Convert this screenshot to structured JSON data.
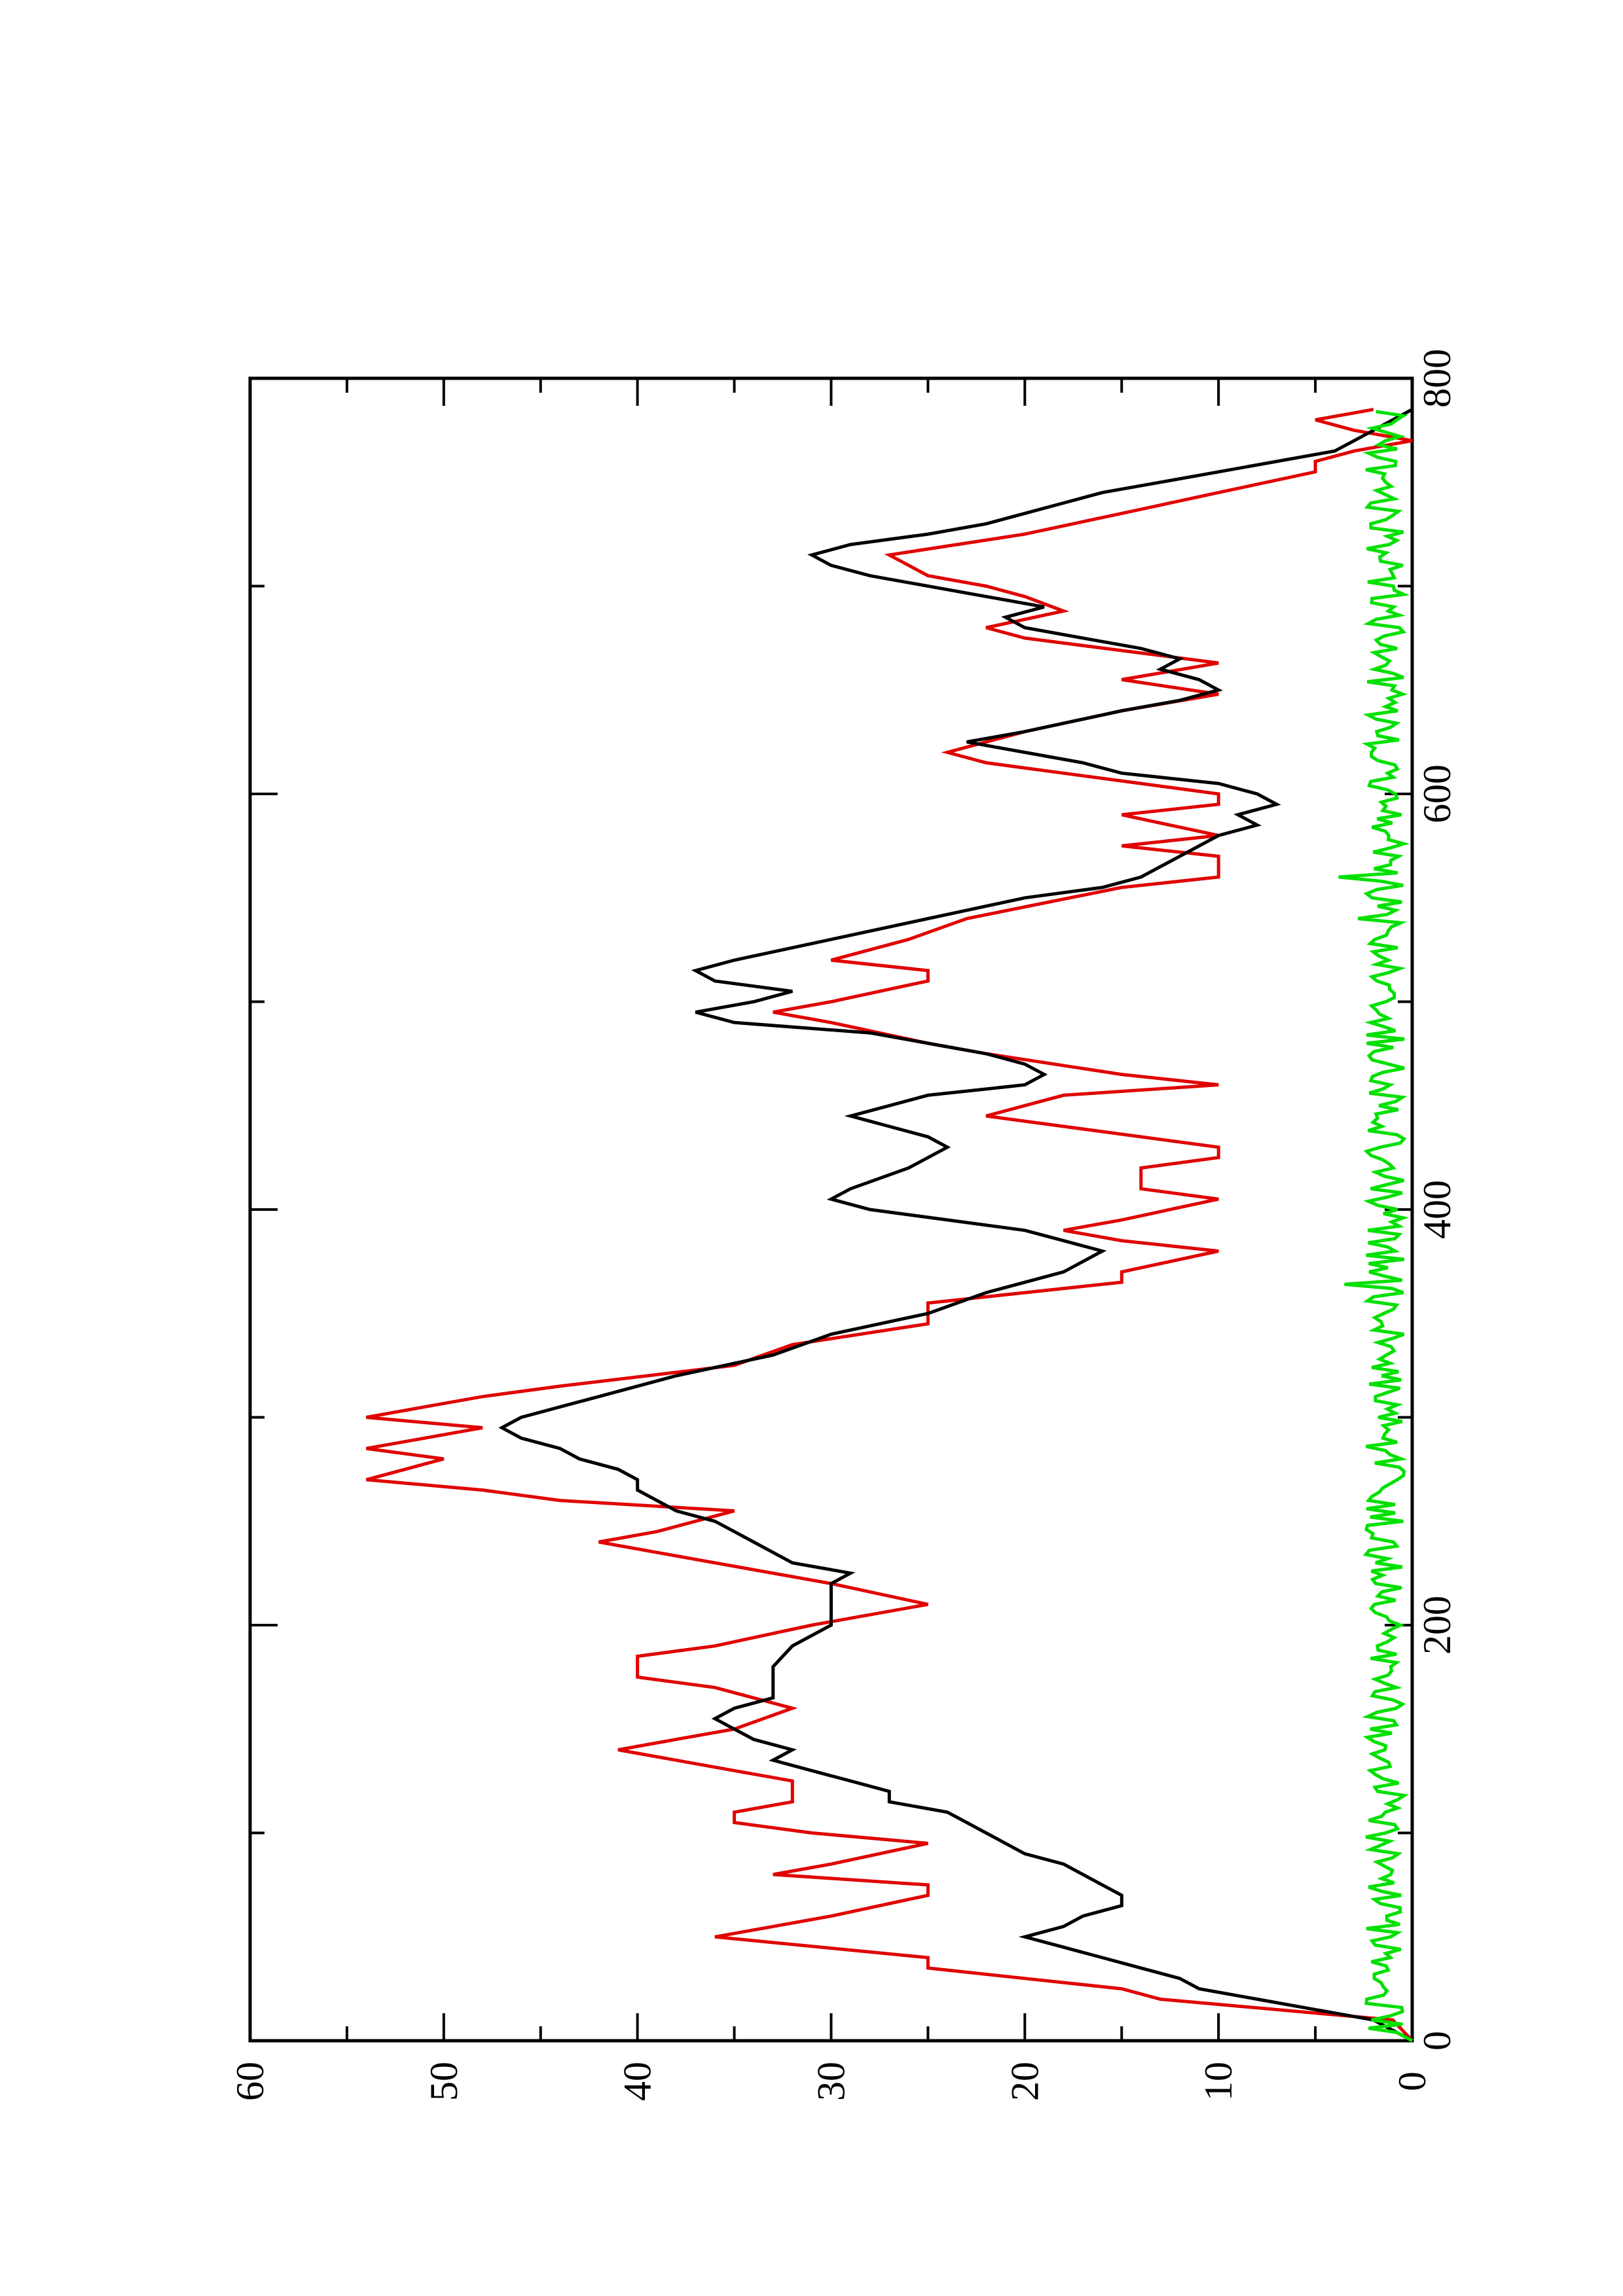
{
  "chart_data": {
    "type": "line",
    "title": "",
    "xlabel": "",
    "ylabel": "",
    "orientation": "rotated-90-counterclockwise",
    "xlim": [
      0,
      800
    ],
    "ylim": [
      0,
      60
    ],
    "x_ticks": [
      "0",
      "200",
      "400",
      "600",
      "800"
    ],
    "y_ticks": [
      "0",
      "10",
      "20",
      "30",
      "40",
      "50",
      "60"
    ],
    "x_minor_step": 100,
    "y_minor_step": 5,
    "grid": false,
    "series": [
      {
        "color": "#e00000",
        "points": [
          [
            0,
            0
          ],
          [
            10,
            1
          ],
          [
            20,
            13
          ],
          [
            25,
            15
          ],
          [
            30,
            20
          ],
          [
            35,
            25
          ],
          [
            40,
            25
          ],
          [
            50,
            36
          ],
          [
            55,
            33
          ],
          [
            60,
            30
          ],
          [
            70,
            25
          ],
          [
            75,
            25
          ],
          [
            80,
            33
          ],
          [
            85,
            30
          ],
          [
            95,
            25
          ],
          [
            100,
            31
          ],
          [
            105,
            35
          ],
          [
            110,
            35
          ],
          [
            115,
            32
          ],
          [
            125,
            32
          ],
          [
            130,
            35
          ],
          [
            140,
            41
          ],
          [
            145,
            38
          ],
          [
            150,
            35
          ],
          [
            160,
            32
          ],
          [
            170,
            36
          ],
          [
            175,
            40
          ],
          [
            185,
            40
          ],
          [
            190,
            36
          ],
          [
            200,
            31
          ],
          [
            210,
            25
          ],
          [
            220,
            30
          ],
          [
            230,
            36
          ],
          [
            240,
            42
          ],
          [
            245,
            39
          ],
          [
            255,
            35
          ],
          [
            260,
            44
          ],
          [
            265,
            48
          ],
          [
            270,
            54
          ],
          [
            275,
            52
          ],
          [
            280,
            50
          ],
          [
            285,
            54
          ],
          [
            290,
            51
          ],
          [
            295,
            48
          ],
          [
            300,
            54
          ],
          [
            305,
            51
          ],
          [
            310,
            48
          ],
          [
            315,
            44
          ],
          [
            325,
            35
          ],
          [
            335,
            32
          ],
          [
            345,
            25
          ],
          [
            355,
            25
          ],
          [
            360,
            20
          ],
          [
            365,
            15
          ],
          [
            370,
            15
          ],
          [
            380,
            10
          ],
          [
            385,
            15
          ],
          [
            390,
            18
          ],
          [
            395,
            15
          ],
          [
            405,
            10
          ],
          [
            410,
            14
          ],
          [
            420,
            14
          ],
          [
            425,
            10
          ],
          [
            430,
            10
          ],
          [
            440,
            18
          ],
          [
            445,
            22
          ],
          [
            455,
            18
          ],
          [
            460,
            10
          ],
          [
            465,
            15
          ],
          [
            475,
            22
          ],
          [
            480,
            25
          ],
          [
            490,
            30
          ],
          [
            495,
            33
          ],
          [
            500,
            30
          ],
          [
            510,
            25
          ],
          [
            515,
            25
          ],
          [
            520,
            30
          ],
          [
            530,
            26
          ],
          [
            540,
            23
          ],
          [
            555,
            15
          ],
          [
            560,
            10
          ],
          [
            570,
            10
          ],
          [
            575,
            15
          ],
          [
            580,
            10
          ],
          [
            590,
            15
          ],
          [
            595,
            10
          ],
          [
            600,
            10
          ],
          [
            605,
            14
          ],
          [
            610,
            18
          ],
          [
            615,
            22
          ],
          [
            620,
            24
          ],
          [
            630,
            20
          ],
          [
            640,
            15
          ],
          [
            648,
            10
          ],
          [
            655,
            15
          ],
          [
            663,
            10
          ],
          [
            675,
            20
          ],
          [
            680,
            22
          ],
          [
            688,
            18
          ],
          [
            695,
            20
          ],
          [
            700,
            22
          ],
          [
            705,
            25
          ],
          [
            715,
            27
          ],
          [
            725,
            20
          ],
          [
            735,
            15
          ],
          [
            745,
            10
          ],
          [
            755,
            5
          ],
          [
            760,
            5
          ],
          [
            765,
            3
          ],
          [
            770,
            0
          ],
          [
            775,
            3
          ],
          [
            780,
            5
          ],
          [
            785,
            2
          ]
        ]
      },
      {
        "color": "#000000",
        "points": [
          [
            0,
            0
          ],
          [
            5,
            1
          ],
          [
            10,
            2
          ],
          [
            15,
            5
          ],
          [
            20,
            8
          ],
          [
            25,
            11
          ],
          [
            30,
            12
          ],
          [
            35,
            14
          ],
          [
            40,
            16
          ],
          [
            45,
            18
          ],
          [
            50,
            20
          ],
          [
            55,
            18
          ],
          [
            60,
            17
          ],
          [
            65,
            15
          ],
          [
            70,
            15
          ],
          [
            75,
            16
          ],
          [
            80,
            17
          ],
          [
            85,
            18
          ],
          [
            90,
            20
          ],
          [
            95,
            21
          ],
          [
            100,
            22
          ],
          [
            105,
            23
          ],
          [
            110,
            24
          ],
          [
            115,
            27
          ],
          [
            120,
            27
          ],
          [
            125,
            29
          ],
          [
            130,
            31
          ],
          [
            135,
            33
          ],
          [
            140,
            32
          ],
          [
            145,
            34
          ],
          [
            150,
            35
          ],
          [
            155,
            36
          ],
          [
            160,
            35
          ],
          [
            165,
            33
          ],
          [
            170,
            33
          ],
          [
            175,
            33
          ],
          [
            180,
            33
          ],
          [
            190,
            32
          ],
          [
            200,
            30
          ],
          [
            210,
            30
          ],
          [
            220,
            30
          ],
          [
            225,
            29
          ],
          [
            230,
            32
          ],
          [
            235,
            33
          ],
          [
            240,
            34
          ],
          [
            245,
            35
          ],
          [
            250,
            36
          ],
          [
            255,
            38
          ],
          [
            260,
            39
          ],
          [
            265,
            40
          ],
          [
            270,
            40
          ],
          [
            275,
            41
          ],
          [
            280,
            43
          ],
          [
            285,
            44
          ],
          [
            290,
            46
          ],
          [
            295,
            47
          ],
          [
            300,
            46
          ],
          [
            305,
            44
          ],
          [
            310,
            42
          ],
          [
            320,
            38
          ],
          [
            330,
            33
          ],
          [
            340,
            30
          ],
          [
            350,
            25
          ],
          [
            360,
            22
          ],
          [
            370,
            18
          ],
          [
            375,
            17
          ],
          [
            380,
            16
          ],
          [
            385,
            18
          ],
          [
            390,
            20
          ],
          [
            395,
            24
          ],
          [
            400,
            28
          ],
          [
            405,
            30
          ],
          [
            410,
            29
          ],
          [
            420,
            26
          ],
          [
            430,
            24
          ],
          [
            435,
            25
          ],
          [
            440,
            27
          ],
          [
            445,
            29
          ],
          [
            450,
            27
          ],
          [
            455,
            25
          ],
          [
            460,
            20
          ],
          [
            465,
            19
          ],
          [
            470,
            20
          ],
          [
            475,
            22
          ],
          [
            480,
            25
          ],
          [
            485,
            28
          ],
          [
            490,
            35
          ],
          [
            495,
            37
          ],
          [
            500,
            34
          ],
          [
            505,
            32
          ],
          [
            510,
            36
          ],
          [
            515,
            37
          ],
          [
            520,
            35
          ],
          [
            530,
            30
          ],
          [
            540,
            25
          ],
          [
            550,
            20
          ],
          [
            555,
            16
          ],
          [
            560,
            14
          ],
          [
            565,
            13
          ],
          [
            570,
            12
          ],
          [
            580,
            10
          ],
          [
            585,
            8
          ],
          [
            590,
            9
          ],
          [
            595,
            7
          ],
          [
            600,
            8
          ],
          [
            605,
            10
          ],
          [
            610,
            15
          ],
          [
            615,
            17
          ],
          [
            620,
            20
          ],
          [
            625,
            23
          ],
          [
            630,
            20
          ],
          [
            640,
            15
          ],
          [
            645,
            12
          ],
          [
            650,
            10
          ],
          [
            655,
            11
          ],
          [
            660,
            13
          ],
          [
            665,
            12
          ],
          [
            670,
            14
          ],
          [
            675,
            17
          ],
          [
            680,
            20
          ],
          [
            685,
            21
          ],
          [
            690,
            19
          ],
          [
            695,
            22
          ],
          [
            705,
            28
          ],
          [
            710,
            30
          ],
          [
            715,
            31
          ],
          [
            720,
            29
          ],
          [
            725,
            25
          ],
          [
            730,
            22
          ],
          [
            735,
            20
          ],
          [
            740,
            18
          ],
          [
            745,
            16
          ],
          [
            750,
            13
          ],
          [
            755,
            10
          ],
          [
            760,
            7
          ],
          [
            765,
            4
          ],
          [
            770,
            3
          ],
          [
            775,
            2
          ],
          [
            780,
            1
          ],
          [
            785,
            0
          ]
        ]
      },
      {
        "color": "#00e000",
        "generator": "noise",
        "mean": 1.4,
        "amplitude": 1.0,
        "seed": 7,
        "xmax": 785,
        "step": 2,
        "spikes": [
          [
            365,
            3.5
          ],
          [
            560,
            3.8
          ],
          [
            540,
            2.8
          ]
        ]
      }
    ]
  }
}
